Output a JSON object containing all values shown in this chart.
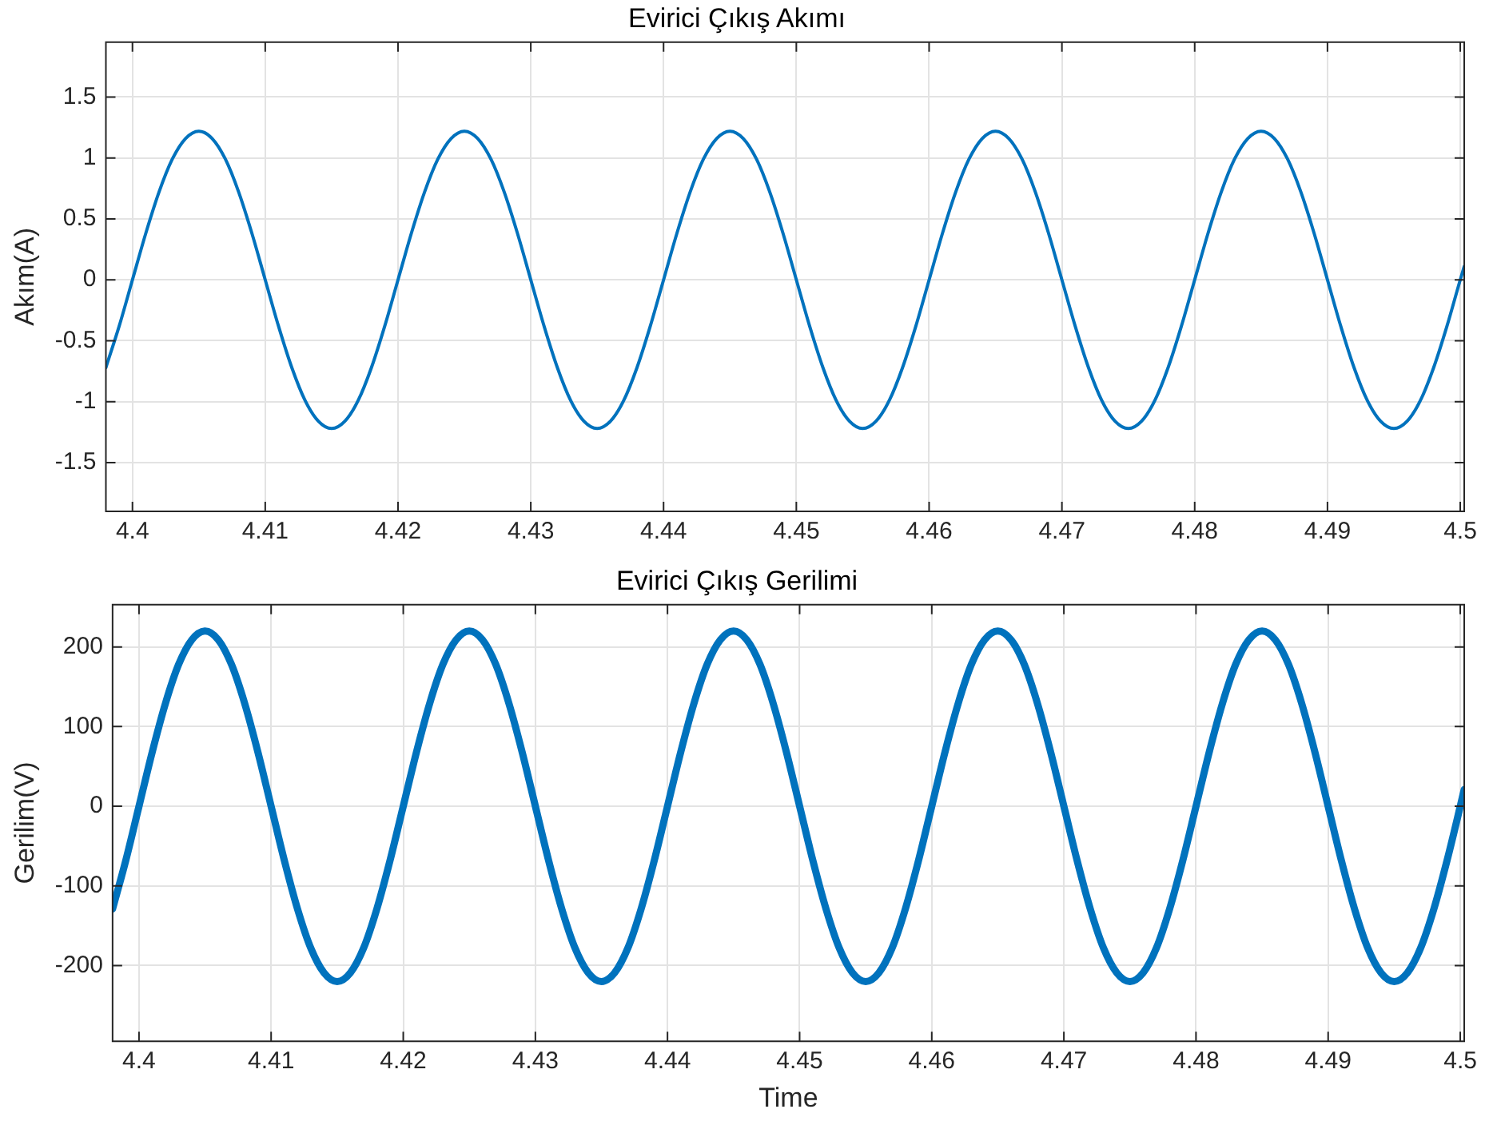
{
  "chart_data": [
    {
      "type": "line",
      "title": "Evirici Çıkış Akımı",
      "ylabel": "Akım(A)",
      "color": "#0072bd",
      "grid": true,
      "marker": "none",
      "x": [
        4.398,
        4.399,
        4.4,
        4.401,
        4.402,
        4.403,
        4.404,
        4.405,
        4.406,
        4.407,
        4.408,
        4.409,
        4.41,
        4.411,
        4.412,
        4.413,
        4.414,
        4.415,
        4.416,
        4.417,
        4.418,
        4.419,
        4.42,
        4.421,
        4.422,
        4.423,
        4.424,
        4.425,
        4.426,
        4.427,
        4.428,
        4.429,
        4.43,
        4.431,
        4.432,
        4.433,
        4.434,
        4.435,
        4.436,
        4.437,
        4.438,
        4.439,
        4.44,
        4.441,
        4.442,
        4.443,
        4.444,
        4.445,
        4.446,
        4.447,
        4.448,
        4.449,
        4.45,
        4.451,
        4.452,
        4.453,
        4.454,
        4.455,
        4.456,
        4.457,
        4.458,
        4.459,
        4.46,
        4.461,
        4.462,
        4.463,
        4.464,
        4.465,
        4.466,
        4.467,
        4.468,
        4.469,
        4.47,
        4.471,
        4.472,
        4.473,
        4.474,
        4.475,
        4.476,
        4.477,
        4.478,
        4.479,
        4.48,
        4.481,
        4.482,
        4.483,
        4.484,
        4.485,
        4.486,
        4.487,
        4.488,
        4.489,
        4.49,
        4.491,
        4.492,
        4.493,
        4.494,
        4.495,
        4.496,
        4.497,
        4.498,
        4.499,
        4.5,
        4.5003
      ],
      "values": [
        -0.72,
        -0.38,
        0,
        0.38,
        0.72,
        0.99,
        1.16,
        1.22,
        1.16,
        0.99,
        0.72,
        0.38,
        0,
        -0.38,
        -0.72,
        -0.99,
        -1.16,
        -1.22,
        -1.16,
        -0.99,
        -0.72,
        -0.38,
        0,
        0.38,
        0.72,
        0.99,
        1.16,
        1.22,
        1.16,
        0.99,
        0.72,
        0.38,
        0,
        -0.38,
        -0.72,
        -0.99,
        -1.16,
        -1.22,
        -1.16,
        -0.99,
        -0.72,
        -0.38,
        0,
        0.38,
        0.72,
        0.99,
        1.16,
        1.22,
        1.16,
        0.99,
        0.72,
        0.38,
        0,
        -0.38,
        -0.72,
        -0.99,
        -1.16,
        -1.22,
        -1.16,
        -0.99,
        -0.72,
        -0.38,
        0,
        0.38,
        0.72,
        0.99,
        1.16,
        1.22,
        1.16,
        0.99,
        0.72,
        0.38,
        0,
        -0.38,
        -0.72,
        -0.99,
        -1.16,
        -1.22,
        -1.16,
        -0.99,
        -0.72,
        -0.38,
        0,
        0.38,
        0.72,
        0.99,
        1.16,
        1.22,
        1.16,
        0.99,
        0.72,
        0.38,
        0,
        -0.38,
        -0.72,
        -0.99,
        -1.16,
        -1.22,
        -1.16,
        -0.99,
        -0.72,
        -0.38,
        0,
        0.11
      ],
      "xlim": [
        4.398,
        4.5003
      ],
      "xticks": [
        4.4,
        4.41,
        4.42,
        4.43,
        4.44,
        4.45,
        4.46,
        4.47,
        4.48,
        4.49,
        4.5
      ],
      "ylim": [
        -1.9,
        1.95
      ],
      "yticks": [
        -1.5,
        -1,
        -0.5,
        0,
        0.5,
        1,
        1.5
      ]
    },
    {
      "type": "line",
      "title": "Evirici Çıkış Gerilimi",
      "xlabel": "Time",
      "ylabel": "Gerilim(V)",
      "color": "#0072bd",
      "grid": true,
      "marker": "none",
      "x": [
        4.398,
        4.399,
        4.4,
        4.401,
        4.402,
        4.403,
        4.404,
        4.405,
        4.406,
        4.407,
        4.408,
        4.409,
        4.41,
        4.411,
        4.412,
        4.413,
        4.414,
        4.415,
        4.416,
        4.417,
        4.418,
        4.419,
        4.42,
        4.421,
        4.422,
        4.423,
        4.424,
        4.425,
        4.426,
        4.427,
        4.428,
        4.429,
        4.43,
        4.431,
        4.432,
        4.433,
        4.434,
        4.435,
        4.436,
        4.437,
        4.438,
        4.439,
        4.44,
        4.441,
        4.442,
        4.443,
        4.444,
        4.445,
        4.446,
        4.447,
        4.448,
        4.449,
        4.45,
        4.451,
        4.452,
        4.453,
        4.454,
        4.455,
        4.456,
        4.457,
        4.458,
        4.459,
        4.46,
        4.461,
        4.462,
        4.463,
        4.464,
        4.465,
        4.466,
        4.467,
        4.468,
        4.469,
        4.47,
        4.471,
        4.472,
        4.473,
        4.474,
        4.475,
        4.476,
        4.477,
        4.478,
        4.479,
        4.48,
        4.481,
        4.482,
        4.483,
        4.484,
        4.485,
        4.486,
        4.487,
        4.488,
        4.489,
        4.49,
        4.491,
        4.492,
        4.493,
        4.494,
        4.495,
        4.496,
        4.497,
        4.498,
        4.499,
        4.5,
        4.5003
      ],
      "values": [
        -129,
        -68,
        0,
        68,
        129,
        178,
        209,
        220,
        209,
        178,
        129,
        68,
        0,
        -68,
        -129,
        -178,
        -209,
        -220,
        -209,
        -178,
        -129,
        -68,
        0,
        68,
        129,
        178,
        209,
        220,
        209,
        178,
        129,
        68,
        0,
        -68,
        -129,
        -178,
        -209,
        -220,
        -209,
        -178,
        -129,
        -68,
        0,
        68,
        129,
        178,
        209,
        220,
        209,
        178,
        129,
        68,
        0,
        -68,
        -129,
        -178,
        -209,
        -220,
        -209,
        -178,
        -129,
        -68,
        0,
        68,
        129,
        178,
        209,
        220,
        209,
        178,
        129,
        68,
        0,
        -68,
        -129,
        -178,
        -209,
        -220,
        -209,
        -178,
        -129,
        -68,
        0,
        68,
        129,
        178,
        209,
        220,
        209,
        178,
        129,
        68,
        0,
        -68,
        -129,
        -178,
        -209,
        -220,
        -209,
        -178,
        -129,
        -68,
        0,
        21
      ],
      "xlim": [
        4.398,
        4.5003
      ],
      "xticks": [
        4.4,
        4.41,
        4.42,
        4.43,
        4.44,
        4.45,
        4.46,
        4.47,
        4.48,
        4.49,
        4.5
      ],
      "ylim": [
        -295,
        253
      ],
      "yticks": [
        -200,
        -100,
        0,
        100,
        200
      ]
    }
  ]
}
